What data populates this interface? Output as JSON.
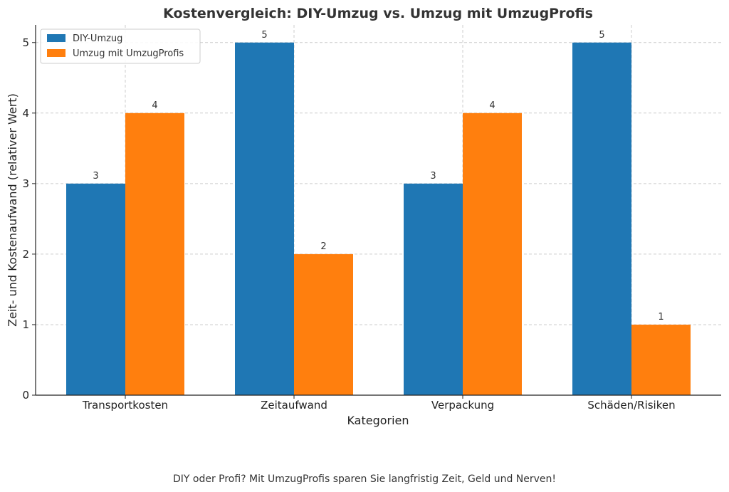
{
  "chart_data": {
    "type": "bar",
    "title": "Kostenvergleich: DIY-Umzug vs. Umzug mit UmzugProfis",
    "xlabel": "Kategorien",
    "ylabel": "Zeit- und Kostenaufwand (relativer Wert)",
    "categories": [
      "Transportkosten",
      "Zeitaufwand",
      "Verpackung",
      "Schäden/Risiken"
    ],
    "series": [
      {
        "name": "DIY-Umzug",
        "values": [
          3,
          5,
          3,
          5
        ],
        "color": "#1f77b4"
      },
      {
        "name": "Umzug mit UmzugProfis",
        "values": [
          4,
          2,
          4,
          1
        ],
        "color": "#ff7f0e"
      }
    ],
    "ylim": [
      0,
      5.25
    ],
    "yticks": [
      0,
      1,
      2,
      3,
      4,
      5
    ],
    "grid": true,
    "legend_position": "top-left",
    "data_labels": true
  },
  "caption": "DIY oder Profi? Mit UmzugProfis sparen Sie langfristig Zeit, Geld und Nerven!"
}
